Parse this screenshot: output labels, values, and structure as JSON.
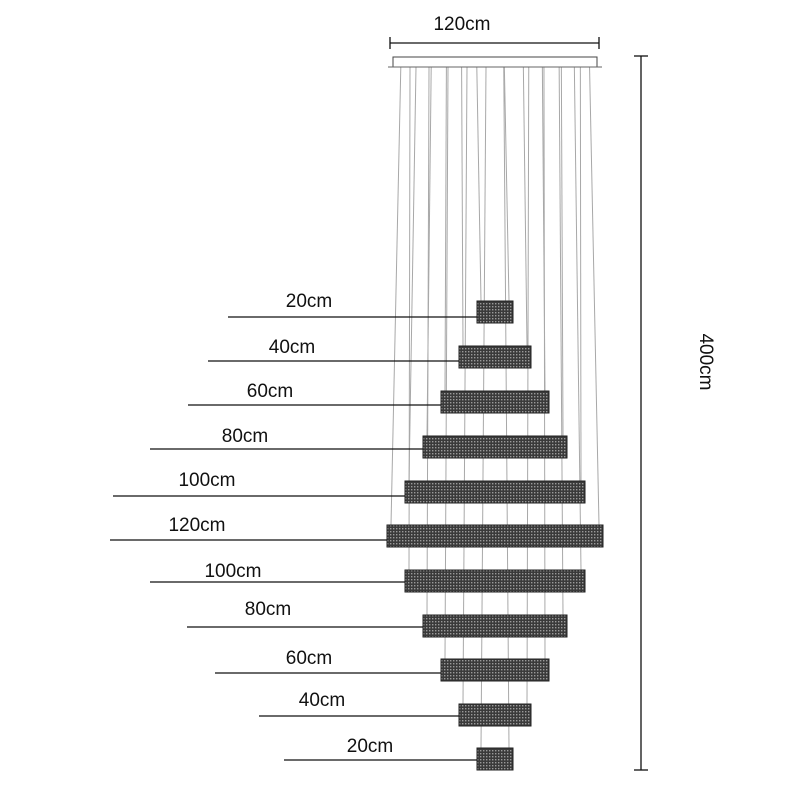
{
  "top_dimension": {
    "label": "120cm"
  },
  "height_dimension": {
    "label": "400cm"
  },
  "tiers": [
    {
      "label": "20cm",
      "width_cm": 20
    },
    {
      "label": "40cm",
      "width_cm": 40
    },
    {
      "label": "60cm",
      "width_cm": 60
    },
    {
      "label": "80cm",
      "width_cm": 80
    },
    {
      "label": "100cm",
      "width_cm": 100
    },
    {
      "label": "120cm",
      "width_cm": 120
    },
    {
      "label": "100cm",
      "width_cm": 100
    },
    {
      "label": "80cm",
      "width_cm": 80
    },
    {
      "label": "60cm",
      "width_cm": 60
    },
    {
      "label": "40cm",
      "width_cm": 40
    },
    {
      "label": "20cm",
      "width_cm": 20
    }
  ],
  "colors": {
    "crystal": "#3a3a3a",
    "wire": "#a8a8a8",
    "line": "#111111"
  }
}
